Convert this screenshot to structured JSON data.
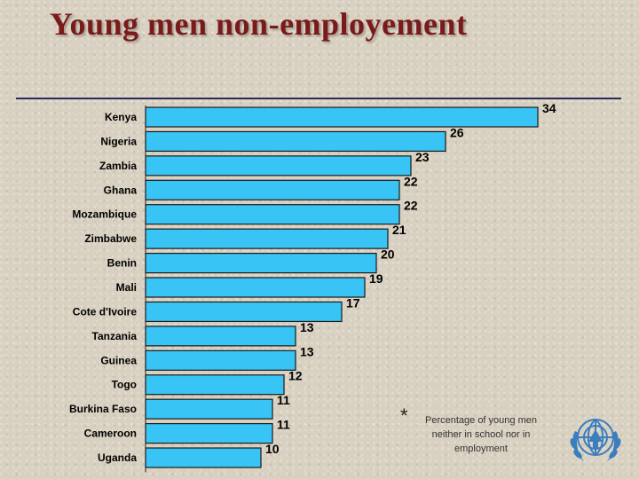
{
  "slide": {
    "title": "Young men non-employement"
  },
  "note": {
    "marker": "*",
    "text": "Percentage of young men neither in school nor in employment"
  },
  "colors": {
    "bar_fill": "#38c4f4",
    "bar_stroke": "#1a1a1a",
    "title": "#7a1a1a",
    "emblem": "#3a7ec0"
  },
  "icons": {
    "emblem": "un-emblem-icon"
  },
  "chart_data": {
    "type": "bar",
    "orientation": "horizontal",
    "title": "",
    "xlabel": "",
    "ylabel": "",
    "xlim": [
      0,
      34
    ],
    "grid": false,
    "legend": "none",
    "categories": [
      "Kenya",
      "Nigeria",
      "Zambia",
      "Ghana",
      "Mozambique",
      "Zimbabwe",
      "Benin",
      "Mali",
      "Cote d'Ivoire",
      "Tanzania",
      "Guinea",
      "Togo",
      "Burkina Faso",
      "Cameroon",
      "Uganda"
    ],
    "values": [
      34,
      26,
      23,
      22,
      22,
      21,
      20,
      19,
      17,
      13,
      13,
      12,
      11,
      11,
      10
    ],
    "value_labels": [
      "34",
      "26",
      "23",
      "22",
      "22",
      "21",
      "20",
      "19",
      "17",
      "13",
      "13",
      "12",
      "11",
      "11",
      "10"
    ]
  }
}
